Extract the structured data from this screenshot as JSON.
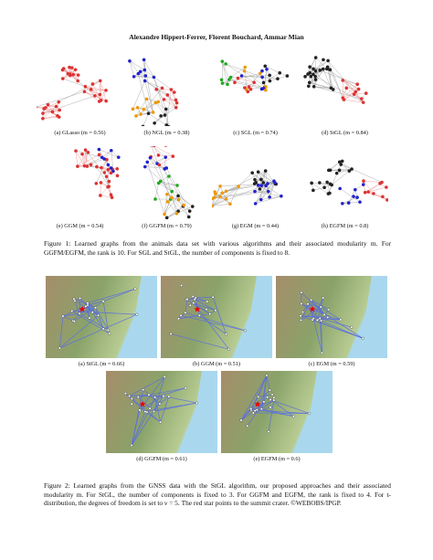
{
  "header": {
    "authors": "Alexandre Hippert-Ferrer,  Florent Bouchard,  Ammar Mian"
  },
  "figure1": {
    "panels": [
      "(a) GLasso (m = 0.56)",
      "(b) NGL (m = 0.38)",
      "(c) SGL (m = 0.74)",
      "(d) StGL (m = 0.84)",
      "(e) GGM (m = 0.54)",
      "(f) GGFM (m = 0.79)",
      "(g) EGM (m = 0.44)",
      "(h) EGFM (m = 0.8)"
    ],
    "caption": "Figure 1: Learned graphs from the animals data set with various algorithms and their associated modularity m. For GGFM/EGFM, the rank is 10. For SGL and StGL, the number of components is fixed to 8."
  },
  "figure2": {
    "panels": [
      "(a) StGL (m = 0.66)",
      "(b) GGM (m = 0.51)",
      "(c) EGM (m = 0.59)",
      "(d) GGFM (m = 0.61)",
      "(e) EGFM (m = 0.6)"
    ],
    "caption": "Figure 2: Learned graphs from the GNSS data with the StGL algorithm, our proposed approaches and their associated modularity m. For StGL, the number of components is fixed to 3. For GGFM and EGFM, the rank is fixed to 4. For t-distribution, the degrees of freedom is set to ν = 5. The red star points to the summit crater. ©WEBOBS/IPGP."
  }
}
